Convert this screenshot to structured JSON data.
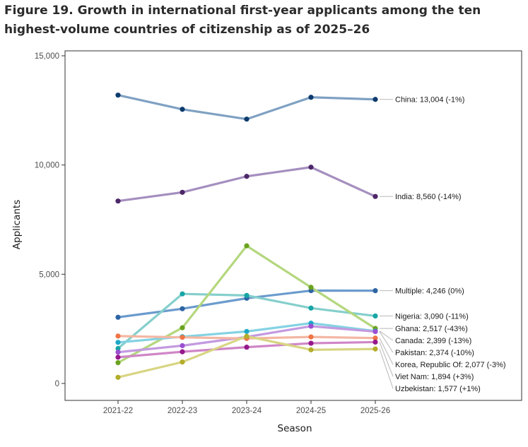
{
  "title": "Figure 19. Growth in international first-year applicants among the ten highest-volume countries of citizenship as of 2025–26",
  "chart_data": {
    "type": "line",
    "title": "Figure 19. Growth in international first-year applicants among the ten highest-volume countries of citizenship as of 2025–26",
    "xlabel": "Season",
    "ylabel": "Applicants",
    "x": [
      "2021-22",
      "2022-23",
      "2023-24",
      "2024-25",
      "2025-26"
    ],
    "ylim": [
      0,
      15000
    ],
    "yticks": [
      0,
      5000,
      10000,
      15000
    ],
    "ytick_labels": [
      "0",
      "5,000",
      "10,000",
      "15,000"
    ],
    "grid": false,
    "legend": "direct end labels",
    "series": [
      {
        "name": "China",
        "values": [
          13200,
          12550,
          12100,
          13100,
          13004
        ],
        "label": "China: 13,004 (-1%)",
        "line_color": "#7fa1c3",
        "point_color": "#0d3b6e"
      },
      {
        "name": "India",
        "values": [
          8350,
          8750,
          9480,
          9900,
          8560
        ],
        "label": "India: 8,560 (-14%)",
        "line_color": "#a58fbf",
        "point_color": "#4c2768"
      },
      {
        "name": "Multiple",
        "values": [
          3030,
          3420,
          3900,
          4250,
          4246
        ],
        "label": "Multiple: 4,246 (0%)",
        "line_color": "#6b9bcd",
        "point_color": "#2d64a3"
      },
      {
        "name": "Nigeria",
        "values": [
          1600,
          4100,
          4030,
          3450,
          3090
        ],
        "label": "Nigeria: 3,090 (-11%)",
        "line_color": "#85cfcc",
        "point_color": "#17a5a5"
      },
      {
        "name": "Ghana",
        "values": [
          950,
          2550,
          6300,
          4400,
          2517
        ],
        "label": "Ghana: 2,517 (-43%)",
        "line_color": "#b4d77e",
        "point_color": "#6aa21e"
      },
      {
        "name": "Canada",
        "values": [
          1880,
          2140,
          2380,
          2760,
          2399
        ],
        "label": "Canada: 2,399 (-13%)",
        "line_color": "#84d2e3",
        "point_color": "#1ea9c7"
      },
      {
        "name": "Pakistan",
        "values": [
          1430,
          1730,
          2130,
          2620,
          2374
        ],
        "label": "Pakistan: 2,374 (-10%)",
        "line_color": "#c39ae0",
        "point_color": "#9b4fd1"
      },
      {
        "name": "Korea, Republic Of",
        "values": [
          2170,
          2110,
          2060,
          2130,
          2077
        ],
        "label": "Korea, Republic Of: 2,077 (-3%)",
        "line_color": "#f4b7a3",
        "point_color": "#f07446"
      },
      {
        "name": "Viet Nam",
        "values": [
          1200,
          1450,
          1660,
          1840,
          1894
        ],
        "label": "Viet Nam: 1,894 (+3%)",
        "line_color": "#cf86c7",
        "point_color": "#96188b"
      },
      {
        "name": "Uzbekistan",
        "values": [
          280,
          980,
          2160,
          1540,
          1577
        ],
        "label": "Uzbekistan: 1,577 (+1%)",
        "line_color": "#d8d583",
        "point_color": "#b3ad2a"
      }
    ]
  }
}
